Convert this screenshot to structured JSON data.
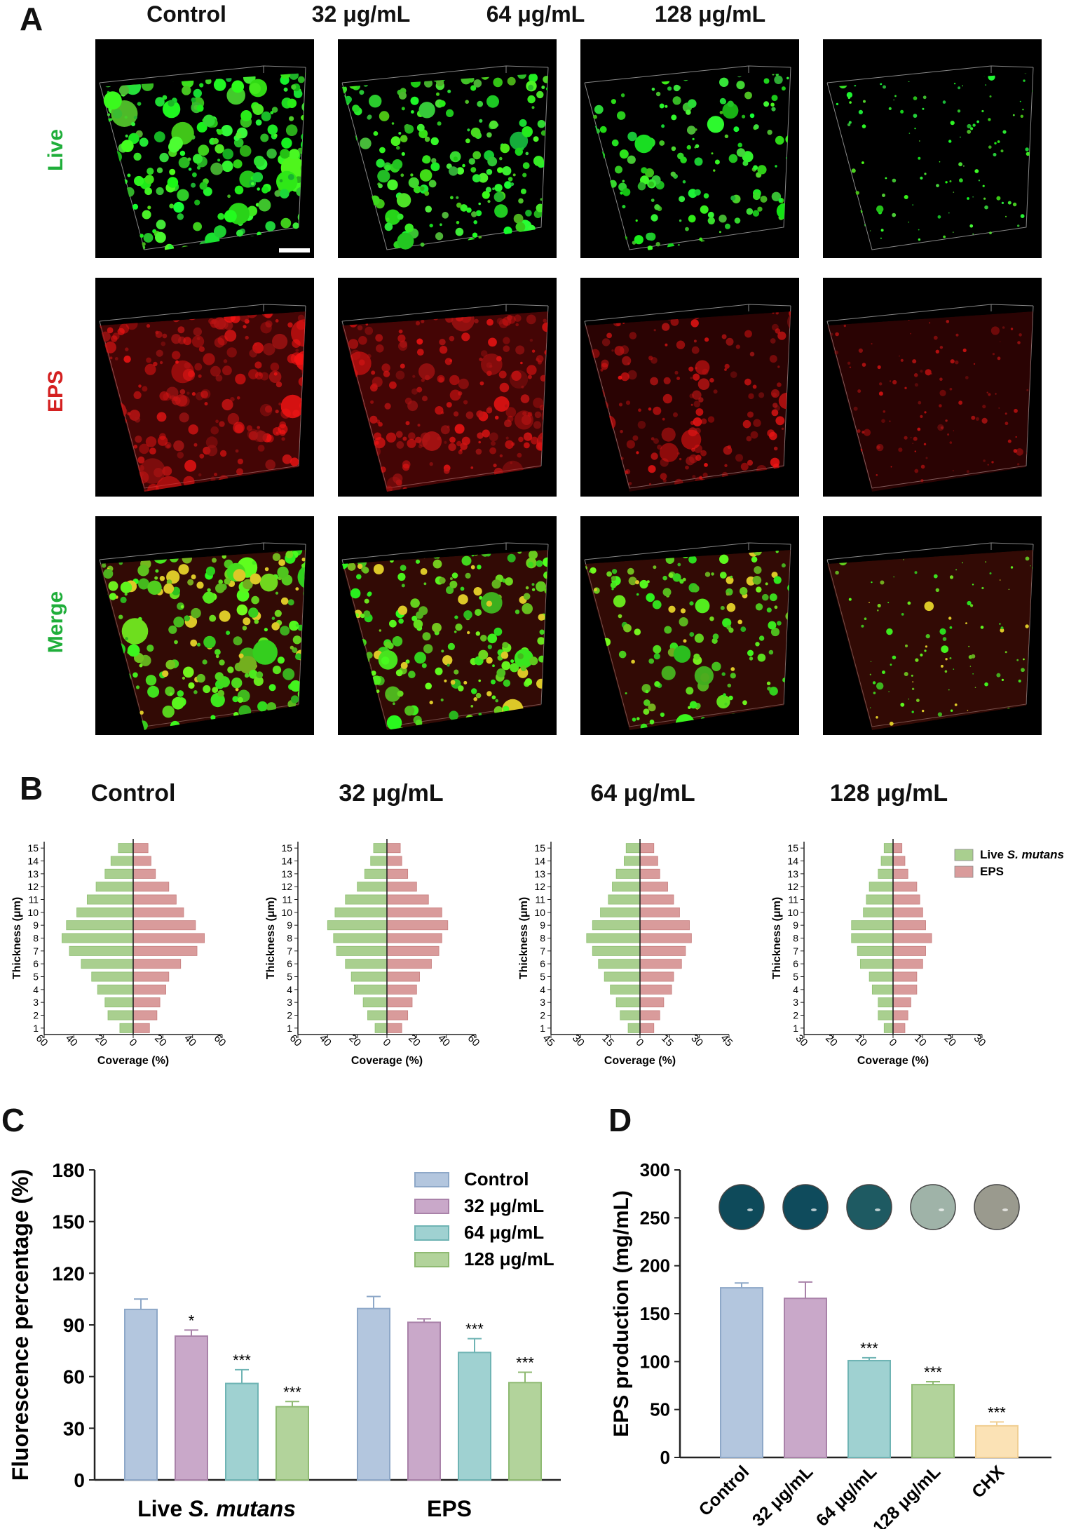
{
  "panel_a": {
    "letter": "A",
    "columns": [
      "Control",
      "32 μg/mL",
      "64 μg/mL",
      "128 μg/mL"
    ],
    "rows": [
      {
        "label": "Live",
        "color": "#1fae3a"
      },
      {
        "label": "EPS",
        "color": "#d42020"
      },
      {
        "label": "Merge",
        "color": "#1fae3a"
      }
    ]
  },
  "panel_b": {
    "letter": "B",
    "titles": [
      "Control",
      "32 μg/mL",
      "64 μg/mL",
      "128 μg/mL"
    ],
    "ylabel": "Thickness (μm)",
    "xlabel": "Coverage (%)",
    "legend": [
      {
        "prefix": "Live ",
        "italic": "S. mutans",
        "color": "#a9cf8f"
      },
      {
        "prefix": "EPS",
        "italic": "",
        "color": "#d99b9b"
      }
    ]
  },
  "panel_c": {
    "letter": "C",
    "ylabel": "Fluorescence percentage (%)",
    "yticks": [
      "0",
      "30",
      "60",
      "90",
      "120",
      "150",
      "180"
    ],
    "group_labels": [
      {
        "prefix": "Live ",
        "italic": "S. mutans"
      },
      {
        "prefix": "EPS",
        "italic": ""
      }
    ],
    "legend": [
      "Control",
      "32 μg/mL",
      "64 μg/mL",
      "128 μg/mL"
    ]
  },
  "panel_d": {
    "letter": "D",
    "ylabel": "EPS production (mg/mL)",
    "yticks": [
      "0",
      "50",
      "100",
      "150",
      "200",
      "250",
      "300"
    ],
    "categories": [
      "Control",
      "32 μg/mL",
      "64 μg/mL",
      "128 μg/mL",
      "CHX"
    ]
  },
  "chart_data": [
    {
      "type": "bar",
      "orientation": "horizontal-mirrored",
      "title": "Control",
      "xlabel": "Coverage (%)",
      "ylabel": "Thickness (μm)",
      "xlim": [
        -60,
        60
      ],
      "xticks": [
        "60",
        "40",
        "20",
        "0",
        "20",
        "40",
        "60"
      ],
      "y": [
        1,
        2,
        3,
        4,
        5,
        6,
        7,
        8,
        9,
        10,
        11,
        12,
        13,
        14,
        15
      ],
      "series": [
        {
          "name": "Live S. mutans",
          "values": [
            9,
            17,
            19,
            24,
            28,
            35,
            43,
            48,
            45,
            38,
            31,
            25,
            19,
            15,
            10
          ]
        },
        {
          "name": "EPS",
          "values": [
            11,
            16,
            18,
            22,
            24,
            32,
            43,
            48,
            42,
            34,
            29,
            24,
            15,
            12,
            10
          ]
        }
      ]
    },
    {
      "type": "bar",
      "orientation": "horizontal-mirrored",
      "title": "32 μg/mL",
      "xlabel": "Coverage (%)",
      "ylabel": "Thickness (μm)",
      "xlim": [
        -60,
        60
      ],
      "xticks": [
        "60",
        "40",
        "20",
        "0",
        "20",
        "40",
        "60"
      ],
      "y": [
        1,
        2,
        3,
        4,
        5,
        6,
        7,
        8,
        9,
        10,
        11,
        12,
        13,
        14,
        15
      ],
      "series": [
        {
          "name": "Live S. mutans",
          "values": [
            8,
            13,
            16,
            22,
            24,
            28,
            34,
            36,
            40,
            35,
            28,
            20,
            15,
            11,
            9
          ]
        },
        {
          "name": "EPS",
          "values": [
            10,
            14,
            17,
            20,
            22,
            30,
            35,
            37,
            41,
            37,
            28,
            20,
            14,
            10,
            9
          ]
        }
      ]
    },
    {
      "type": "bar",
      "orientation": "horizontal-mirrored",
      "title": "64 μg/mL",
      "xlabel": "Coverage (%)",
      "ylabel": "Thickness (μm)",
      "xlim": [
        -45,
        45
      ],
      "xticks": [
        "45",
        "30",
        "15",
        "0",
        "15",
        "30",
        "45"
      ],
      "y": [
        1,
        2,
        3,
        4,
        5,
        6,
        7,
        8,
        9,
        10,
        11,
        12,
        13,
        14,
        15
      ],
      "series": [
        {
          "name": "Live S. mutans",
          "values": [
            6,
            10,
            12,
            15,
            18,
            21,
            24,
            27,
            24,
            20,
            16,
            14,
            12,
            8,
            7
          ]
        },
        {
          "name": "EPS",
          "values": [
            7,
            10,
            12,
            16,
            17,
            21,
            23,
            26,
            25,
            20,
            17,
            14,
            10,
            9,
            7
          ]
        }
      ]
    },
    {
      "type": "bar",
      "orientation": "horizontal-mirrored",
      "title": "128 μg/mL",
      "xlabel": "Coverage (%)",
      "ylabel": "Thickness (μm)",
      "xlim": [
        -30,
        30
      ],
      "xticks": [
        "30",
        "20",
        "10",
        "0",
        "10",
        "20",
        "30"
      ],
      "y": [
        1,
        2,
        3,
        4,
        5,
        6,
        7,
        8,
        9,
        10,
        11,
        12,
        13,
        14,
        15
      ],
      "series": [
        {
          "name": "Live S. mutans",
          "values": [
            3,
            5,
            5,
            7,
            8,
            11,
            12,
            14,
            14,
            10,
            9,
            8,
            5,
            4,
            3
          ]
        },
        {
          "name": "EPS",
          "values": [
            4,
            5,
            6,
            8,
            8,
            10,
            11,
            13,
            11,
            10,
            9,
            8,
            5,
            4,
            3
          ]
        }
      ]
    },
    {
      "type": "bar",
      "title": "",
      "xlabel": "",
      "ylabel": "Fluorescence percentage (%)",
      "ylim": [
        0,
        180
      ],
      "categories": [
        "Live S. mutans",
        "EPS"
      ],
      "series": [
        {
          "name": "Control",
          "values": [
            99,
            99.5
          ],
          "errors": [
            6,
            7
          ],
          "significance": [
            "",
            ""
          ],
          "color": "#b3c6de"
        },
        {
          "name": "32 μg/mL",
          "values": [
            83.5,
            91.5
          ],
          "errors": [
            3.5,
            2
          ],
          "significance": [
            "*",
            ""
          ],
          "color": "#c9a8c9"
        },
        {
          "name": "64 μg/mL",
          "values": [
            56,
            74
          ],
          "errors": [
            8,
            8
          ],
          "significance": [
            "***",
            "***"
          ],
          "color": "#9fd1d1"
        },
        {
          "name": "128 μg/mL",
          "values": [
            42.5,
            56.5
          ],
          "errors": [
            3,
            6
          ],
          "significance": [
            "***",
            "***"
          ],
          "color": "#b2d39b"
        }
      ],
      "legend_position": "top-right"
    },
    {
      "type": "bar",
      "title": "",
      "xlabel": "",
      "ylabel": "EPS production (mg/mL)",
      "ylim": [
        0,
        300
      ],
      "categories": [
        "Control",
        "32 μg/mL",
        "64 μg/mL",
        "128 μg/mL",
        "CHX"
      ],
      "values": [
        177,
        166,
        101,
        76,
        33
      ],
      "errors": [
        5,
        17,
        3,
        3,
        4
      ],
      "significance": [
        "",
        "",
        "***",
        "***",
        "***"
      ],
      "colors": [
        "#b3c6de",
        "#c9a8c9",
        "#9fd1d1",
        "#b2d39b",
        "#fbe2b5"
      ],
      "dish_colors": [
        "#0e4a5a",
        "#0f4b5c",
        "#1e5a62",
        "#9fb3a8",
        "#9a9a8e"
      ]
    }
  ]
}
